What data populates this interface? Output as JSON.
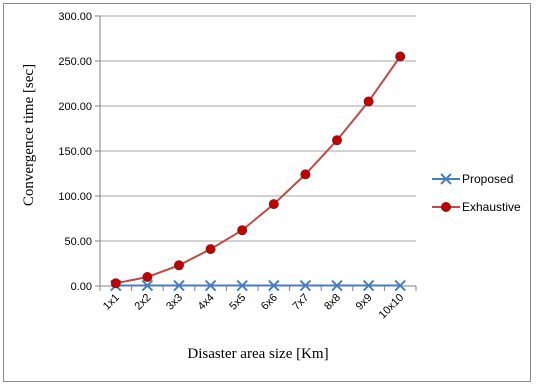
{
  "chart_data": {
    "type": "line",
    "categories": [
      "1x1",
      "2x2",
      "3x3",
      "4x4",
      "5x5",
      "6x6",
      "7x7",
      "8x8",
      "9x9",
      "10x10"
    ],
    "series": [
      {
        "name": "Proposed",
        "color": "#4a7ebb",
        "marker": "x-icon",
        "values": [
          0.5,
          0.5,
          0.5,
          0.5,
          0.5,
          0.5,
          0.5,
          0.5,
          0.5,
          0.5
        ]
      },
      {
        "name": "Exhaustive",
        "color": "#be4b48",
        "marker": "circle-icon",
        "values": [
          3,
          10,
          23,
          41,
          62,
          91,
          124,
          162,
          205,
          255
        ]
      }
    ],
    "ylim": [
      0,
      300
    ],
    "yticks": [
      "0.00",
      "50.00",
      "100.00",
      "150.00",
      "200.00",
      "250.00",
      "300.00"
    ],
    "ytick_values": [
      0,
      50,
      100,
      150,
      200,
      250,
      300
    ],
    "xlabel": "Disaster area size [Km]",
    "ylabel": "Convergence time [sec]",
    "grid": true,
    "legend": "right"
  }
}
